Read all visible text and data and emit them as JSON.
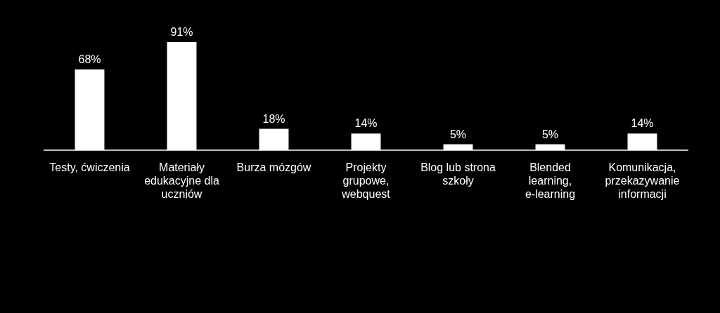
{
  "chart_data": {
    "type": "bar",
    "categories": [
      "Testy, ćwiczenia",
      "Materiały edukacyjne dla uczniów",
      "Burza mózgów",
      "Projekty grupowe, webquest",
      "Blog lub strona szkoły",
      "Blended learning, e-learning",
      "Komunikacja, przekazywanie informacji"
    ],
    "values": [
      68,
      91,
      18,
      14,
      5,
      5,
      14
    ],
    "value_labels": [
      "68%",
      "91%",
      "18%",
      "14%",
      "5%",
      "5%",
      "14%"
    ],
    "color": "#ffffff"
  }
}
